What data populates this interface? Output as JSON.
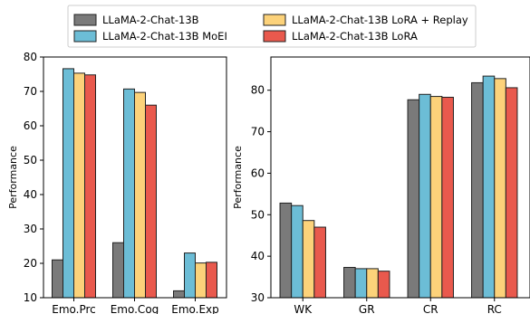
{
  "colors": {
    "LLaMA-2-Chat-13B": "#7a7a7a",
    "LLaMA-2-Chat-13B MoEI": "#6cbdd6",
    "LLaMA-2-Chat-13B LoRA + Replay": "#fcd27a",
    "LLaMA-2-Chat-13B LoRA": "#e9594d"
  },
  "legend": {
    "items": [
      "LLaMA-2-Chat-13B",
      "LLaMA-2-Chat-13B MoEI",
      "LLaMA-2-Chat-13B LoRA + Replay",
      "LLaMA-2-Chat-13B LoRA"
    ],
    "placement": "top-center"
  },
  "chart_data": [
    {
      "type": "bar",
      "title": "",
      "xlabel": "",
      "ylabel": "Performance",
      "ylim": [
        10,
        80
      ],
      "yticks": [
        10,
        20,
        30,
        40,
        50,
        60,
        70,
        80
      ],
      "grid": false,
      "categories": [
        "Emo.Prc",
        "Emo.Cog",
        "Emo.Exp"
      ],
      "series": [
        {
          "name": "LLaMA-2-Chat-13B",
          "values": [
            21.0,
            26.0,
            12.0
          ]
        },
        {
          "name": "LLaMA-2-Chat-13B MoEI",
          "values": [
            76.6,
            70.7,
            23.0
          ]
        },
        {
          "name": "LLaMA-2-Chat-13B LoRA + Replay",
          "values": [
            75.3,
            69.7,
            20.1
          ]
        },
        {
          "name": "LLaMA-2-Chat-13B LoRA",
          "values": [
            74.8,
            66.0,
            20.3
          ]
        }
      ]
    },
    {
      "type": "bar",
      "title": "",
      "xlabel": "",
      "ylabel": "Performance",
      "ylim": [
        30,
        88
      ],
      "yticks": [
        30,
        40,
        50,
        60,
        70,
        80
      ],
      "grid": false,
      "categories": [
        "WK",
        "GR",
        "CR",
        "RC"
      ],
      "series": [
        {
          "name": "LLaMA-2-Chat-13B",
          "values": [
            52.8,
            37.3,
            77.7,
            81.8
          ]
        },
        {
          "name": "LLaMA-2-Chat-13B MoEI",
          "values": [
            52.2,
            37.0,
            79.0,
            83.4
          ]
        },
        {
          "name": "LLaMA-2-Chat-13B LoRA + Replay",
          "values": [
            48.6,
            37.0,
            78.5,
            82.8
          ]
        },
        {
          "name": "LLaMA-2-Chat-13B LoRA",
          "values": [
            47.0,
            36.4,
            78.3,
            80.6
          ]
        }
      ]
    }
  ]
}
